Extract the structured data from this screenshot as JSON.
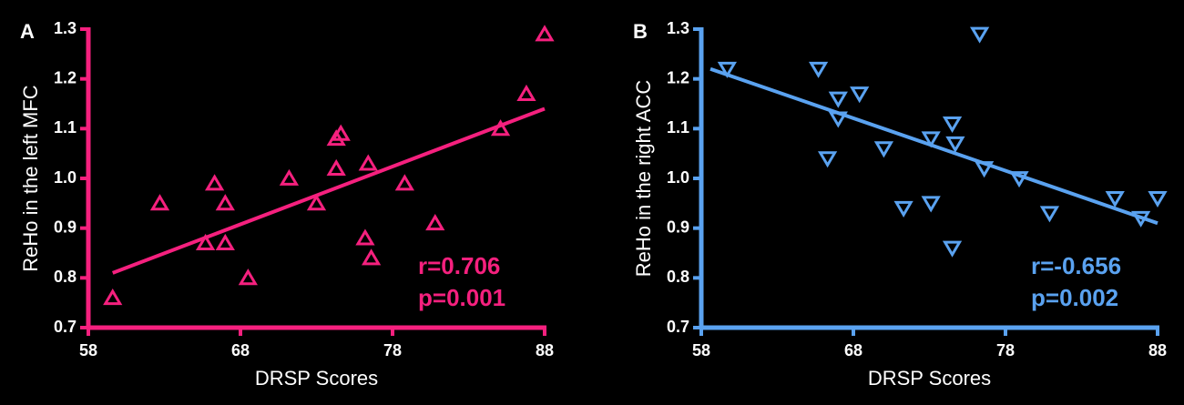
{
  "chart_data": [
    {
      "type": "scatter",
      "panel_label": "A",
      "xlabel": "DRSP Scores",
      "ylabel": "ReHo in the left MFC",
      "color": "#f5207e",
      "marker": "triangle-up",
      "x": [
        59.6,
        62.7,
        66.3,
        65.7,
        67.0,
        67.0,
        68.5,
        71.2,
        73.0,
        74.3,
        74.6,
        74.3,
        76.4,
        76.2,
        76.6,
        78.8,
        80.8,
        85.1,
        86.8,
        88.0
      ],
      "values": [
        0.76,
        0.95,
        0.99,
        0.87,
        0.95,
        0.87,
        0.8,
        1.0,
        0.95,
        1.08,
        1.09,
        1.02,
        1.03,
        0.88,
        0.84,
        0.99,
        0.91,
        1.1,
        1.17,
        1.29
      ],
      "trend_line": {
        "x": [
          59.6,
          88.0
        ],
        "y": [
          0.81,
          1.14
        ]
      },
      "annotations": [
        "r=0.706",
        "p=0.001"
      ],
      "xlim": [
        58,
        88
      ],
      "xticks": [
        58,
        68,
        78,
        88
      ],
      "ylim": [
        0.7,
        1.3
      ],
      "yticks": [
        0.7,
        0.8,
        0.9,
        {
          "value": 1,
          "label": "1.0"
        },
        1.1,
        1.2,
        1.3
      ]
    },
    {
      "type": "scatter",
      "panel_label": "B",
      "xlabel": "DRSP Scores",
      "ylabel": "ReHo in the right ACC",
      "color": "#5aa2f0",
      "marker": "triangle-down",
      "x": [
        59.7,
        65.7,
        67.0,
        68.4,
        67.0,
        66.3,
        70.0,
        71.3,
        73.1,
        73.1,
        74.5,
        74.7,
        74.5,
        76.3,
        76.6,
        78.9,
        80.9,
        85.2,
        86.9,
        88.0
      ],
      "values": [
        1.22,
        1.22,
        1.16,
        1.17,
        1.12,
        1.04,
        1.06,
        0.94,
        1.08,
        0.95,
        1.11,
        1.07,
        0.86,
        1.29,
        1.02,
        1.0,
        0.93,
        0.96,
        0.92,
        0.96
      ],
      "trend_line": {
        "x": [
          58.6,
          88.0
        ],
        "y": [
          1.22,
          0.91
        ]
      },
      "annotations": [
        "r=-0.656",
        "p=0.002"
      ],
      "xlim": [
        58,
        88
      ],
      "xticks": [
        58,
        68,
        78,
        88
      ],
      "ylim": [
        0.7,
        1.3
      ],
      "yticks": [
        0.7,
        0.8,
        0.9,
        {
          "value": 1,
          "label": "1.0"
        },
        1.1,
        1.2,
        1.3
      ]
    }
  ]
}
